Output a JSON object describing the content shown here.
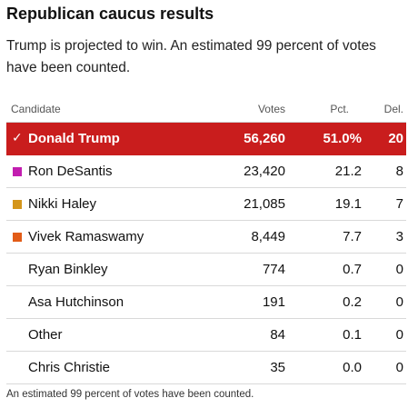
{
  "title": "Republican caucus results",
  "subtitle": "Trump is projected to win. An estimated 99 percent of votes have been counted.",
  "table": {
    "headers": {
      "candidate": "Candidate",
      "votes": "Votes",
      "pct": "Pct.",
      "del": "Del."
    },
    "rows": [
      {
        "name": "Donald Trump",
        "votes": "56,260",
        "pct": "51.0%",
        "del": "20",
        "color": "#c91d1d",
        "winner": true
      },
      {
        "name": "Ron DeSantis",
        "votes": "23,420",
        "pct": "21.2",
        "del": "8",
        "color": "#c21eb0"
      },
      {
        "name": "Nikki Haley",
        "votes": "21,085",
        "pct": "19.1",
        "del": "7",
        "color": "#d4961c"
      },
      {
        "name": "Vivek Ramaswamy",
        "votes": "8,449",
        "pct": "7.7",
        "del": "3",
        "color": "#e25c18"
      },
      {
        "name": "Ryan Binkley",
        "votes": "774",
        "pct": "0.7",
        "del": "0"
      },
      {
        "name": "Asa Hutchinson",
        "votes": "191",
        "pct": "0.2",
        "del": "0"
      },
      {
        "name": "Other",
        "votes": "84",
        "pct": "0.1",
        "del": "0"
      },
      {
        "name": "Chris Christie",
        "votes": "35",
        "pct": "0.0",
        "del": "0"
      }
    ]
  },
  "icons": {
    "winner": "checkmark-icon"
  },
  "footnote": "An estimated 99 percent of votes have been counted."
}
